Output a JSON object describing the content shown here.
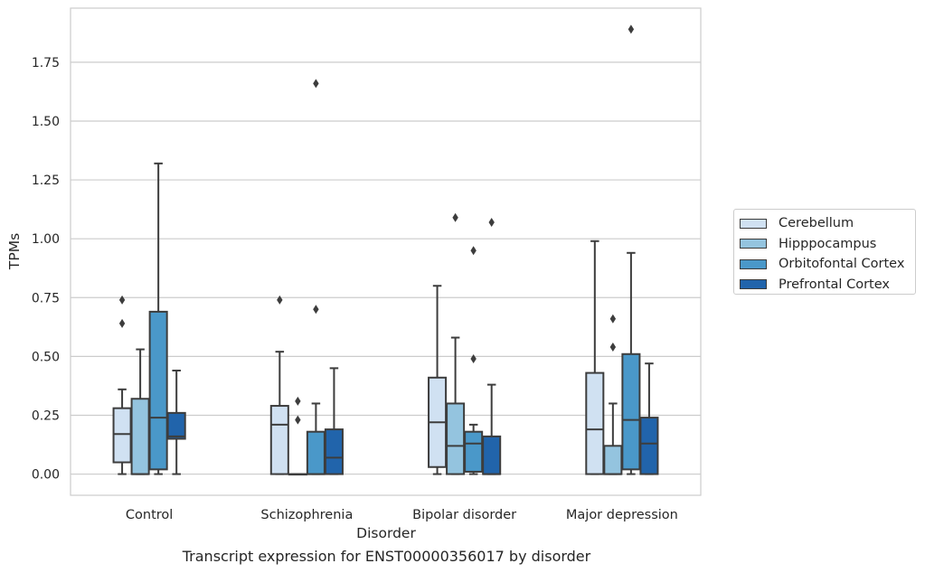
{
  "chart_data": {
    "type": "box",
    "xlabel": "Disorder",
    "ylabel": "TPMs",
    "ylim": [
      -0.09,
      1.98
    ],
    "grid": "horizontal",
    "legend_placement": "right",
    "categories": [
      "Control",
      "Schizophrenia",
      "Bipolar disorder",
      "Major depression"
    ],
    "y_ticks": [
      "0.00",
      "0.25",
      "0.50",
      "0.75",
      "1.00",
      "1.25",
      "1.50",
      "1.75"
    ],
    "y_tick_values": [
      0,
      0.25,
      0.5,
      0.75,
      1.0,
      1.25,
      1.5,
      1.75
    ],
    "series": [
      {
        "name": "Cerebellum",
        "color": "#d0e1f2",
        "boxes": [
          {
            "q1": 0.05,
            "median": 0.17,
            "q3": 0.28,
            "whislo": 0.0,
            "whishi": 0.36,
            "fliers": [
              0.64,
              0.74
            ]
          },
          {
            "q1": 0.0,
            "median": 0.21,
            "q3": 0.29,
            "whislo": 0.0,
            "whishi": 0.52,
            "fliers": [
              0.74
            ]
          },
          {
            "q1": 0.03,
            "median": 0.22,
            "q3": 0.41,
            "whislo": 0.0,
            "whishi": 0.8,
            "fliers": []
          },
          {
            "q1": 0.0,
            "median": 0.19,
            "q3": 0.43,
            "whislo": 0.0,
            "whishi": 0.99,
            "fliers": []
          }
        ]
      },
      {
        "name": "Hipppocampus",
        "color": "#94c4df",
        "boxes": [
          {
            "q1": 0.0,
            "median": 0.0,
            "q3": 0.32,
            "whislo": 0.0,
            "whishi": 0.53,
            "fliers": []
          },
          {
            "q1": 0.0,
            "median": 0.0,
            "q3": 0.0,
            "whislo": 0.0,
            "whishi": 0.0,
            "fliers": [
              0.23,
              0.31
            ]
          },
          {
            "q1": 0.0,
            "median": 0.12,
            "q3": 0.3,
            "whislo": 0.0,
            "whishi": 0.58,
            "fliers": [
              1.09
            ]
          },
          {
            "q1": 0.0,
            "median": 0.0,
            "q3": 0.12,
            "whislo": 0.0,
            "whishi": 0.3,
            "fliers": [
              0.54,
              0.66
            ]
          }
        ]
      },
      {
        "name": "Orbitofontal Cortex",
        "color": "#4a98c9",
        "boxes": [
          {
            "q1": 0.02,
            "median": 0.24,
            "q3": 0.69,
            "whislo": 0.0,
            "whishi": 1.32,
            "fliers": []
          },
          {
            "q1": 0.0,
            "median": 0.0,
            "q3": 0.18,
            "whislo": 0.0,
            "whishi": 0.3,
            "fliers": [
              0.7,
              1.66
            ]
          },
          {
            "q1": 0.01,
            "median": 0.13,
            "q3": 0.18,
            "whislo": 0.0,
            "whishi": 0.21,
            "fliers": [
              0.49,
              0.95
            ]
          },
          {
            "q1": 0.02,
            "median": 0.23,
            "q3": 0.51,
            "whislo": 0.0,
            "whishi": 0.94,
            "fliers": [
              1.89
            ]
          }
        ]
      },
      {
        "name": "Prefrontal Cortex",
        "color": "#2164ab",
        "boxes": [
          {
            "q1": 0.15,
            "median": 0.16,
            "q3": 0.26,
            "whislo": 0.0,
            "whishi": 0.44,
            "fliers": []
          },
          {
            "q1": 0.0,
            "median": 0.07,
            "q3": 0.19,
            "whislo": 0.0,
            "whishi": 0.45,
            "fliers": []
          },
          {
            "q1": 0.0,
            "median": 0.0,
            "q3": 0.16,
            "whislo": 0.0,
            "whishi": 0.38,
            "fliers": [
              1.07
            ]
          },
          {
            "q1": 0.0,
            "median": 0.13,
            "q3": 0.24,
            "whislo": 0.0,
            "whishi": 0.47,
            "fliers": []
          }
        ]
      }
    ]
  },
  "caption": "Transcript expression for ENST00000356017 by disorder"
}
